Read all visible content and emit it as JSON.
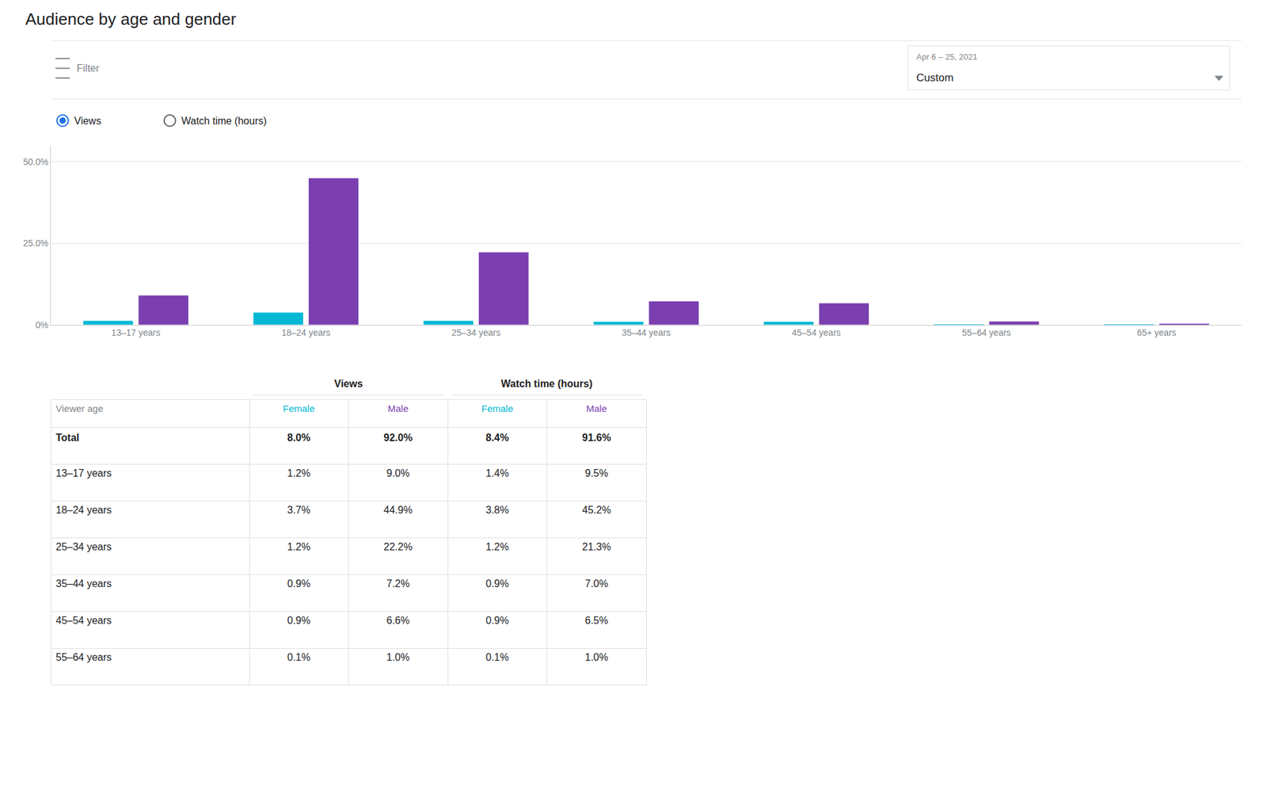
{
  "chart_data": [
    {
      "type": "bar",
      "title": "Audience by age and gender",
      "annotations": [
        "Filter",
        "Apr 6 – 25, 2021",
        "Custom",
        "Views",
        "Watch time (hours)"
      ],
      "categories": [
        "13–17 years",
        "18–24 years",
        "25–34 years",
        "35–44 years",
        "45–54 years",
        "55–64 years",
        "65+ years"
      ],
      "series": [
        {
          "color": "#00b8d4",
          "values": [
            1.2,
            3.7,
            1.2,
            0.9,
            0.9,
            0.1,
            0.05
          ]
        },
        {
          "color": "#7b3fb0",
          "values": [
            9.0,
            44.9,
            22.2,
            7.2,
            6.6,
            1.0,
            0.3
          ]
        }
      ],
      "ylim": [
        0,
        55
      ],
      "yticks": [
        {
          "value": 0,
          "label": "0%"
        },
        {
          "value": 25,
          "label": "25.0%"
        },
        {
          "value": 50,
          "label": "50.0%"
        }
      ],
      "grid": true
    },
    {
      "type": "table",
      "column_groups": [
        "Views",
        "Watch time (hours)"
      ],
      "columns": [
        "Viewer age",
        "Female",
        "Male",
        "Female",
        "Male"
      ],
      "rows": [
        [
          "Total",
          "8.0%",
          "92.0%",
          "8.4%",
          "91.6%"
        ],
        [
          "13–17 years",
          "1.2%",
          "9.0%",
          "1.4%",
          "9.5%"
        ],
        [
          "18–24 years",
          "3.7%",
          "44.9%",
          "3.8%",
          "45.2%"
        ],
        [
          "25–34 years",
          "1.2%",
          "22.2%",
          "1.2%",
          "21.3%"
        ],
        [
          "35–44 years",
          "0.9%",
          "7.2%",
          "0.9%",
          "7.0%"
        ],
        [
          "45–54 years",
          "0.9%",
          "6.6%",
          "0.9%",
          "6.5%"
        ],
        [
          "55–64 years",
          "0.1%",
          "1.0%",
          "0.1%",
          "1.0%"
        ]
      ]
    }
  ]
}
